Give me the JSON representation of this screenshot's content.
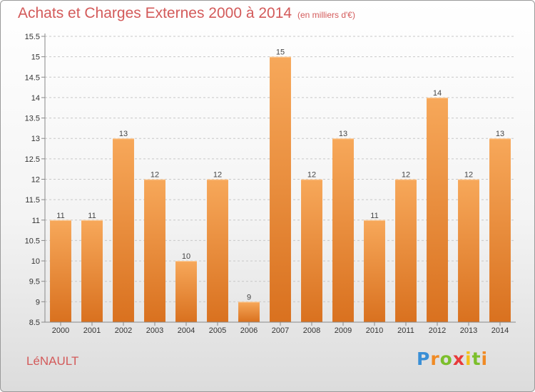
{
  "title": "Achats et Charges Externes 2000 à 2014",
  "subtitle": "(en milliers d'€)",
  "commune": "LéNAULT",
  "logo": {
    "p": "P",
    "r": "r",
    "o": "o",
    "x": "x",
    "i1": "i",
    "t": "t",
    "i2": "i"
  },
  "colors": {
    "bar_top": "#f7a85a",
    "bar_bottom": "#d9711f",
    "title": "#d35a5a",
    "axis": "#888888",
    "grid": "#c8c8c8"
  },
  "chart_data": {
    "type": "bar",
    "title": "Achats et Charges Externes 2000 à 2014",
    "subtitle": "(en milliers d'€)",
    "xlabel": "",
    "ylabel": "",
    "ylim": [
      8.5,
      15.5
    ],
    "yticks": [
      "8.5",
      "9",
      "9.5",
      "10",
      "10.5",
      "11",
      "11.5",
      "12",
      "12.5",
      "13",
      "13.5",
      "14",
      "14.5",
      "15",
      "15.5"
    ],
    "grid": "horizontal dashed",
    "categories": [
      "2000",
      "2001",
      "2002",
      "2003",
      "2004",
      "2005",
      "2006",
      "2007",
      "2008",
      "2009",
      "2010",
      "2011",
      "2012",
      "2013",
      "2014"
    ],
    "values": [
      11,
      11,
      13,
      12,
      10,
      12,
      9,
      15,
      12,
      13,
      11,
      12,
      14,
      12,
      13
    ],
    "value_labels": [
      "11",
      "11",
      "13",
      "12",
      "10",
      "12",
      "9",
      "15",
      "12",
      "13",
      "11",
      "12",
      "14",
      "12",
      "13"
    ]
  }
}
